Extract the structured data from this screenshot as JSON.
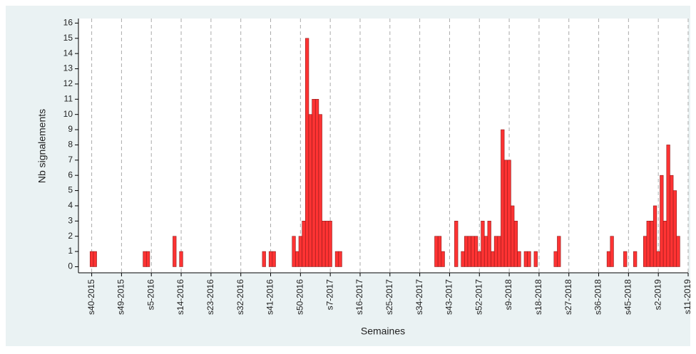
{
  "chart_data": {
    "type": "bar",
    "x_label": "Semaines",
    "y_label": "Nb signalements",
    "x": [
      0,
      1,
      16,
      17,
      25,
      27,
      52,
      54,
      55,
      61,
      62,
      63,
      64,
      65,
      66,
      67,
      68,
      69,
      70,
      71,
      72,
      74,
      75,
      104,
      105,
      106,
      110,
      112,
      113,
      114,
      115,
      116,
      117,
      118,
      119,
      120,
      121,
      122,
      123,
      124,
      125,
      126,
      127,
      128,
      129,
      131,
      132,
      134,
      140,
      141,
      156,
      157,
      161,
      164,
      167,
      168,
      169,
      170,
      171,
      172,
      173,
      174,
      175,
      176,
      177
    ],
    "values": [
      1,
      1,
      1,
      1,
      2,
      1,
      1,
      1,
      1,
      2,
      1,
      2,
      3,
      15,
      10,
      11,
      11,
      10,
      3,
      3,
      3,
      1,
      1,
      2,
      2,
      1,
      3,
      1,
      2,
      2,
      2,
      2,
      1,
      3,
      2,
      3,
      1,
      2,
      2,
      9,
      7,
      7,
      4,
      3,
      1,
      1,
      1,
      1,
      1,
      2,
      1,
      2,
      1,
      1,
      2,
      3,
      3,
      4,
      1,
      6,
      3,
      8,
      6,
      5,
      2
    ],
    "color": "#ff3333",
    "edge_color": "#8b1a1a",
    "xlim": [
      -4,
      180
    ],
    "ylim": [
      -0.4,
      16.3
    ],
    "xticks": [
      {
        "value": 0,
        "label": "s40-2015"
      },
      {
        "value": 9,
        "label": "s49-2015"
      },
      {
        "value": 18,
        "label": "s5-2016"
      },
      {
        "value": 27,
        "label": "s14-2016"
      },
      {
        "value": 36,
        "label": "s23-2016"
      },
      {
        "value": 45,
        "label": "s32-2016"
      },
      {
        "value": 54,
        "label": "s41-2016"
      },
      {
        "value": 63,
        "label": "s50-2016"
      },
      {
        "value": 72,
        "label": "s7-2017"
      },
      {
        "value": 81,
        "label": "s16-2017"
      },
      {
        "value": 90,
        "label": "s25-2017"
      },
      {
        "value": 99,
        "label": "s34-2017"
      },
      {
        "value": 108,
        "label": "s43-2017"
      },
      {
        "value": 117,
        "label": "s52-2017"
      },
      {
        "value": 126,
        "label": "s9-2018"
      },
      {
        "value": 135,
        "label": "s18-2018"
      },
      {
        "value": 144,
        "label": "s27-2018"
      },
      {
        "value": 153,
        "label": "s36-2018"
      },
      {
        "value": 162,
        "label": "s45-2018"
      },
      {
        "value": 171,
        "label": "s2-2019"
      },
      {
        "value": 180,
        "label": "s11-2019"
      }
    ],
    "yticks": [
      0,
      1,
      2,
      3,
      4,
      5,
      6,
      7,
      8,
      9,
      10,
      11,
      12,
      13,
      14,
      15,
      16
    ],
    "grid": true
  }
}
